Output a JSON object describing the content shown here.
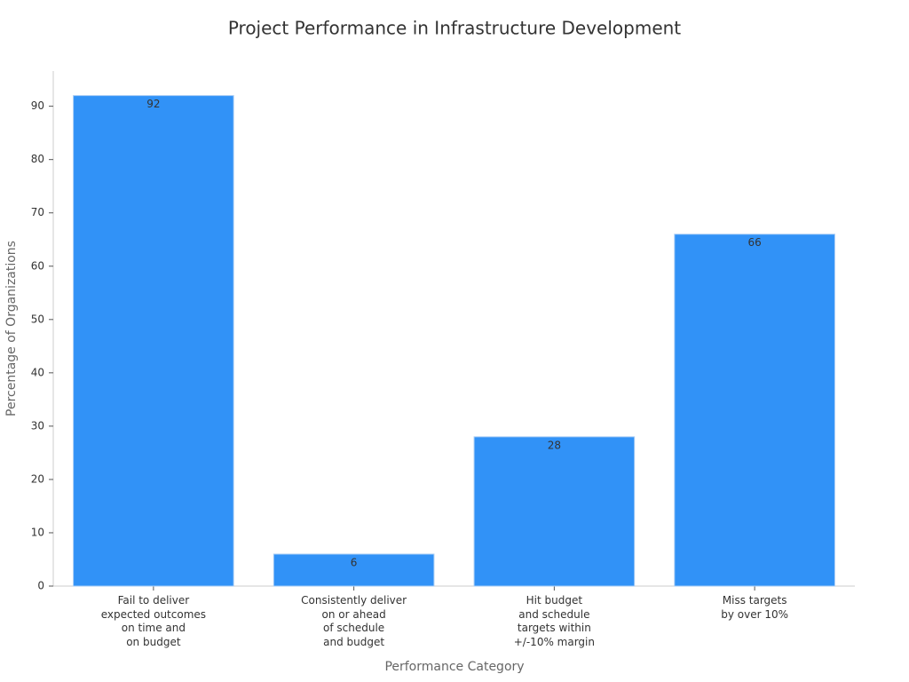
{
  "chart_data": {
    "type": "bar",
    "title": "Project Performance in Infrastructure Development",
    "x_label": "Performance Category",
    "y_label": "Percentage of Organizations",
    "categories": [
      "Fail to deliver\nexpected outcomes\non time and\non budget",
      "Consistently deliver\non or ahead\nof schedule\nand budget",
      "Hit budget\nand schedule\ntargets within\n+/-10% margin",
      "Miss targets\nby over 10%"
    ],
    "values": [
      92,
      6,
      28,
      66
    ],
    "color": "#3192f7",
    "ylim": [
      0,
      96.6
    ],
    "yticks": [
      0,
      10,
      20,
      30,
      40,
      50,
      60,
      70,
      80,
      90
    ],
    "grid": false
  }
}
